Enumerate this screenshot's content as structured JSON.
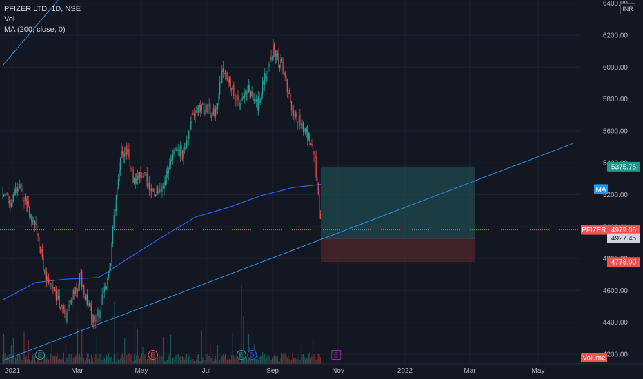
{
  "legend": {
    "symbol_line": "PFIZER LTD, 1D, NSE",
    "vol_label": "Vol",
    "ma_label": "MA (200, close, 0)"
  },
  "currency": "INR",
  "colors": {
    "background": "#131722",
    "grid": "#1e222d",
    "up": "#26a69a",
    "down": "#ef5350",
    "ma_line": "#2962ff",
    "trend_line": "#2196f3",
    "profit_zone": "#1f4a4d",
    "loss_zone": "#4a2629"
  },
  "chart_data": {
    "type": "candlestick",
    "symbol": "PFIZER LTD",
    "interval": "1D",
    "exchange": "NSE",
    "x_ticks": [
      "2021",
      "Mar",
      "May",
      "Jul",
      "Sep",
      "Nov",
      "2022",
      "Mar",
      "May"
    ],
    "y_ticks": [
      "4200.00",
      "4400.00",
      "4600.00",
      "4800.00",
      "5000.00",
      "5200.00",
      "5400.00",
      "5600.00",
      "5800.00",
      "6000.00",
      "6200.00",
      "6400.00"
    ],
    "ylim": [
      4180,
      6420
    ],
    "grid": true,
    "price_path": [
      [
        "2021-01-01",
        5200
      ],
      [
        "2021-01-08",
        5150
      ],
      [
        "2021-01-15",
        5250
      ],
      [
        "2021-01-22",
        5180
      ],
      [
        "2021-02-01",
        5000
      ],
      [
        "2021-02-10",
        4700
      ],
      [
        "2021-02-20",
        4560
      ],
      [
        "2021-03-01",
        4430
      ],
      [
        "2021-03-08",
        4560
      ],
      [
        "2021-03-15",
        4680
      ],
      [
        "2021-03-22",
        4500
      ],
      [
        "2021-03-29",
        4380
      ],
      [
        "2021-04-05",
        4560
      ],
      [
        "2021-04-12",
        4760
      ],
      [
        "2021-04-16",
        5100
      ],
      [
        "2021-04-22",
        5450
      ],
      [
        "2021-04-28",
        5480
      ],
      [
        "2021-05-05",
        5250
      ],
      [
        "2021-05-12",
        5350
      ],
      [
        "2021-05-20",
        5200
      ],
      [
        "2021-06-01",
        5250
      ],
      [
        "2021-06-10",
        5500
      ],
      [
        "2021-06-20",
        5450
      ],
      [
        "2021-06-28",
        5700
      ],
      [
        "2021-07-10",
        5750
      ],
      [
        "2021-07-20",
        5700
      ],
      [
        "2021-07-26",
        6000
      ],
      [
        "2021-08-02",
        5920
      ],
      [
        "2021-08-10",
        5760
      ],
      [
        "2021-08-20",
        5880
      ],
      [
        "2021-08-28",
        5750
      ],
      [
        "2021-09-05",
        5950
      ],
      [
        "2021-09-12",
        6120
      ],
      [
        "2021-09-20",
        6000
      ],
      [
        "2021-10-01",
        5700
      ],
      [
        "2021-10-12",
        5600
      ],
      [
        "2021-10-20",
        5480
      ],
      [
        "2021-10-27",
        4979.05
      ]
    ],
    "moving_average": {
      "name": "MA (200, close, 0)",
      "period": 200,
      "points": [
        [
          "2021-01-01",
          4540
        ],
        [
          "2021-02-01",
          4650
        ],
        [
          "2021-03-01",
          4670
        ],
        [
          "2021-04-01",
          4680
        ],
        [
          "2021-05-01",
          4810
        ],
        [
          "2021-06-01",
          4940
        ],
        [
          "2021-07-01",
          5060
        ],
        [
          "2021-08-01",
          5120
        ],
        [
          "2021-09-01",
          5195
        ],
        [
          "2021-10-01",
          5245
        ],
        [
          "2021-10-27",
          5265
        ]
      ]
    },
    "trend_lines": [
      {
        "points": [
          [
            "2021-01-01",
            6010
          ],
          [
            "2021-02-22",
            6420
          ]
        ]
      },
      {
        "points": [
          [
            "2021-01-01",
            4160
          ],
          [
            "2022-06-20",
            5520
          ]
        ]
      }
    ],
    "position": {
      "start": "2021-10-27",
      "end": "2022-03-20",
      "entry": 4927.45,
      "target": 5375.75,
      "stop": 4778.0
    },
    "volume_label": "Volume",
    "events": [
      {
        "date": "2021-02-05",
        "label": "E",
        "kind": "earnings-up"
      },
      {
        "date": "2021-05-22",
        "label": "E",
        "kind": "earnings-down"
      },
      {
        "date": "2021-08-13",
        "label": "E",
        "kind": "earnings-up"
      },
      {
        "date": "2021-08-23",
        "label": "D",
        "kind": "dividend"
      },
      {
        "date": "2021-11-10",
        "label": "E",
        "kind": "earnings-upcoming"
      }
    ],
    "price_labels": {
      "symbol_tag": "PFIZER",
      "last_price": "4979.05",
      "target": "5375.75",
      "entry": "4927.45",
      "stop": "4778.00",
      "ma_tag": "MA"
    }
  }
}
